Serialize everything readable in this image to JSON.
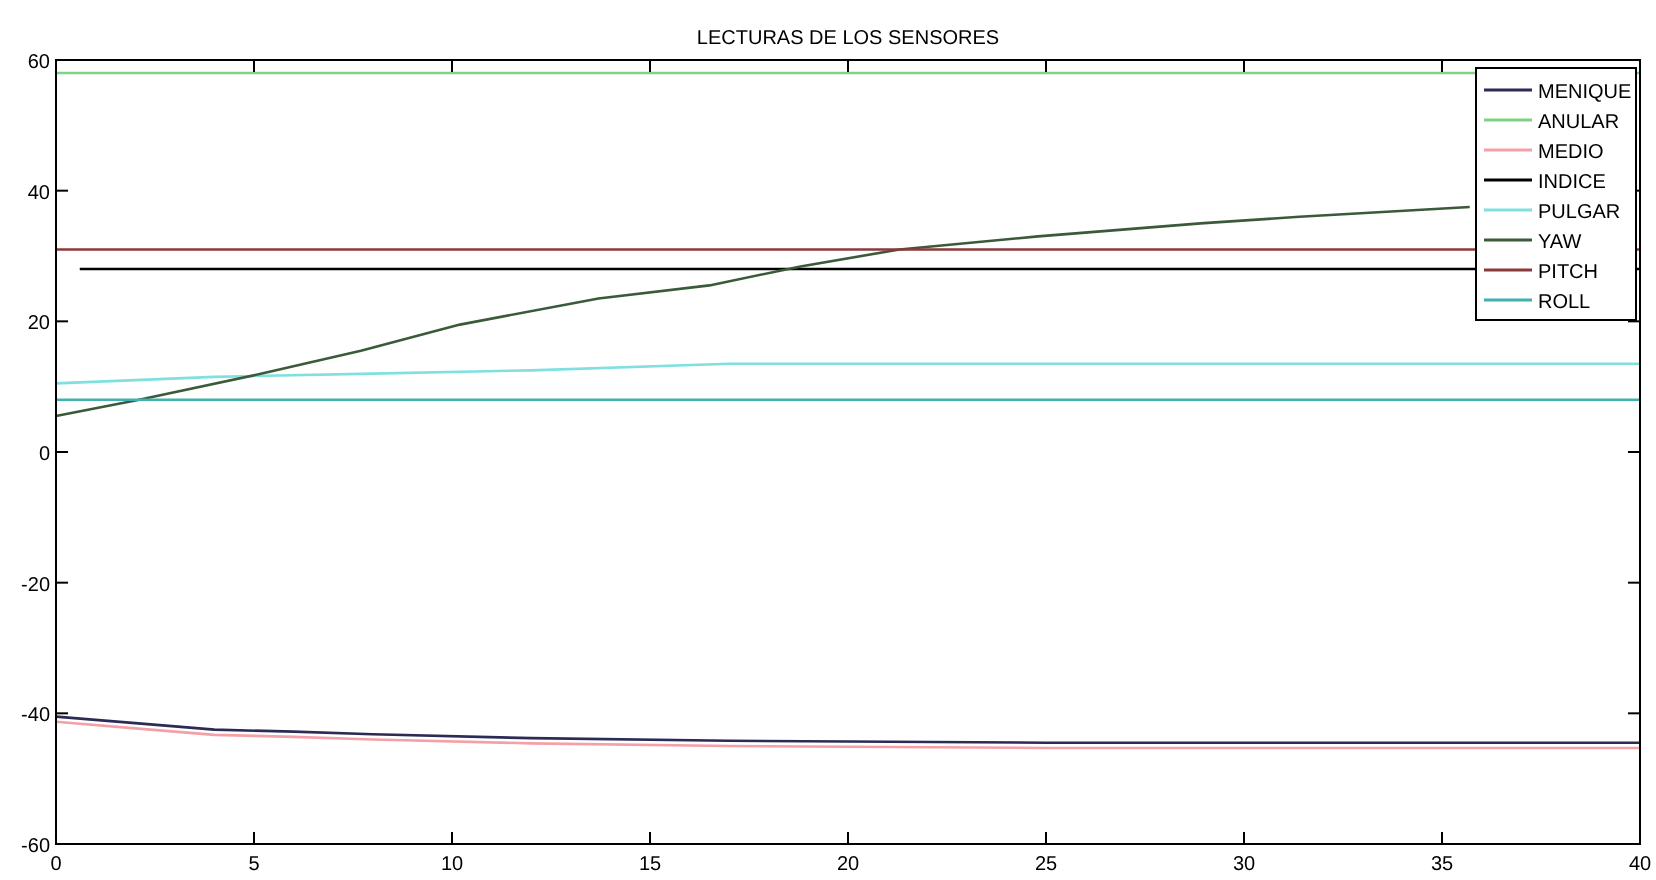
{
  "chart_data": {
    "type": "line",
    "title": "LECTURAS DE LOS SENSORES",
    "xlim": [
      0,
      40
    ],
    "xticks": [
      0,
      5,
      10,
      15,
      20,
      25,
      30,
      35,
      40
    ],
    "ylim": [
      -60,
      60
    ],
    "yticks": [
      -60,
      -40,
      -20,
      0,
      20,
      40,
      60
    ],
    "grid": false,
    "legend": "top right",
    "marker": "none",
    "series": [
      {
        "name": "MENIQUE",
        "color": "#2b2b55",
        "x": [
          0,
          2,
          4,
          6,
          8,
          12,
          17,
          25,
          40
        ],
        "values": [
          -40.5,
          -41.5,
          -42.5,
          -42.8,
          -43.2,
          -43.8,
          -44.2,
          -44.5,
          -44.5
        ]
      },
      {
        "name": "ANULAR",
        "color": "#7fd27f",
        "x": [
          0,
          40
        ],
        "values": [
          58,
          58
        ]
      },
      {
        "name": "MEDIO",
        "color": "#f4a0a8",
        "x": [
          0,
          2,
          4,
          6,
          8,
          12,
          17,
          25,
          40
        ],
        "values": [
          -41.3,
          -42.3,
          -43.3,
          -43.6,
          -44,
          -44.6,
          -45,
          -45.3,
          -45.3
        ]
      },
      {
        "name": "INDICE",
        "color": "#000000",
        "x": [
          0.6,
          40
        ],
        "values": [
          28,
          28
        ]
      },
      {
        "name": "PULGAR",
        "color": "#80e0e0",
        "x": [
          0,
          4,
          8,
          12,
          17,
          40
        ],
        "values": [
          10.5,
          11.5,
          12,
          12.5,
          13.5,
          13.5
        ]
      },
      {
        "name": "YAW",
        "color": "#3a5a3a",
        "x": [
          0,
          2.1,
          5.2,
          7.7,
          10.2,
          13.7,
          16.5,
          18.8,
          21.3,
          24.8,
          28.9,
          31.4,
          35.7
        ],
        "values": [
          5.5,
          8,
          12,
          15.5,
          19.5,
          23.5,
          25.5,
          28.4,
          31,
          33,
          35,
          36,
          37.5
        ]
      },
      {
        "name": "PITCH",
        "color": "#8b3a3a",
        "x": [
          0,
          40
        ],
        "values": [
          31,
          31
        ]
      },
      {
        "name": "ROLL",
        "color": "#40b0b0",
        "x": [
          0,
          40
        ],
        "values": [
          8,
          8
        ]
      }
    ]
  }
}
